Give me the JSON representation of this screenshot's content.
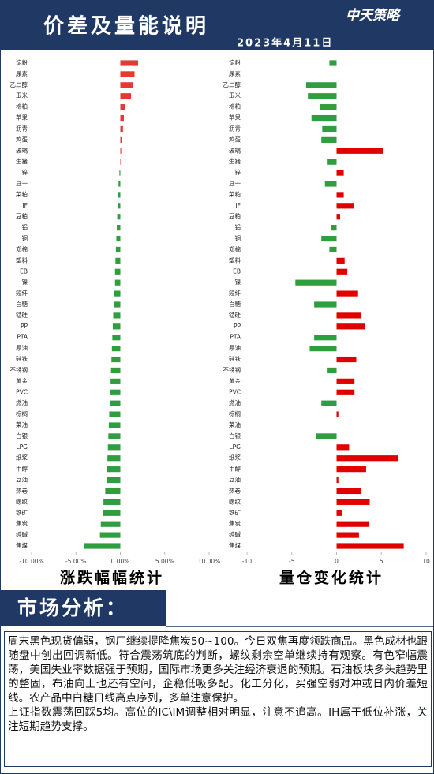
{
  "header": {
    "title": "价差及量能说明",
    "date": "2023年4月11日",
    "logo": "中天策略"
  },
  "chart_data": [
    {
      "type": "bar",
      "orientation": "horizontal",
      "title": "涨跌幅幅统计",
      "categories": [
        "淀粉",
        "尿素",
        "乙二醇",
        "玉米",
        "棉粕",
        "苹果",
        "沥青",
        "鸡蛋",
        "玻璃",
        "生猪",
        "锌",
        "豆一",
        "菜粕",
        "IF",
        "豆粕",
        "铝",
        "铜",
        "郑棉",
        "塑料",
        "EB",
        "镍",
        "短纤",
        "白糖",
        "锰硅",
        "PP",
        "PTA",
        "原油",
        "硅铁",
        "不锈钢",
        "黄金",
        "PVC",
        "燃油",
        "棕榈",
        "菜油",
        "白银",
        "LPG",
        "纸浆",
        "甲醇",
        "豆油",
        "热卷",
        "螺纹",
        "铁矿",
        "焦炭",
        "纯碱",
        "焦煤"
      ],
      "values": [
        2.0,
        1.6,
        1.4,
        1.2,
        0.5,
        0.4,
        0.3,
        0.2,
        0.1,
        0.05,
        -0.1,
        -0.2,
        -0.25,
        -0.3,
        -0.35,
        -0.4,
        -0.45,
        -0.5,
        -0.55,
        -0.6,
        -0.6,
        -0.7,
        -0.75,
        -0.8,
        -0.85,
        -0.9,
        -0.95,
        -1.0,
        -1.05,
        -1.1,
        -1.15,
        -1.2,
        -1.25,
        -1.3,
        -1.35,
        -1.4,
        -1.45,
        -1.5,
        -1.55,
        -1.7,
        -1.9,
        -2.0,
        -2.2,
        -2.3,
        -4.1
      ],
      "positive_color": "#e53935",
      "negative_color": "#2e9e3e",
      "xlim": [
        -10,
        10
      ],
      "xticks": [
        {
          "value": -10,
          "label": "-10.00%"
        },
        {
          "value": -5,
          "label": "-5.00%"
        },
        {
          "value": 0,
          "label": "0.00%"
        },
        {
          "value": 5,
          "label": "5.00%"
        },
        {
          "value": 10,
          "label": "10.00%"
        }
      ]
    },
    {
      "type": "bar",
      "orientation": "horizontal",
      "title": "量仓变化统计",
      "categories": [
        "淀粉",
        "尿素",
        "乙二醇",
        "玉米",
        "棉粕",
        "苹果",
        "沥青",
        "鸡蛋",
        "玻璃",
        "生猪",
        "锌",
        "豆一",
        "菜粕",
        "IF",
        "豆粕",
        "铝",
        "铜",
        "郑棉",
        "塑料",
        "EB",
        "镍",
        "短纤",
        "白糖",
        "锰硅",
        "PP",
        "PTA",
        "原油",
        "硅铁",
        "不锈钢",
        "黄金",
        "PVC",
        "燃油",
        "棕榈",
        "菜油",
        "白银",
        "LPG",
        "纸浆",
        "甲醇",
        "豆油",
        "热卷",
        "螺纹",
        "铁矿",
        "焦炭",
        "纯碱",
        "焦煤"
      ],
      "values": [
        -0.8,
        0,
        -3.4,
        -3.2,
        -1.9,
        -2.8,
        -1.6,
        -1.7,
        5.2,
        -1.0,
        0.8,
        -1.3,
        0.8,
        1.9,
        0.4,
        -0.6,
        -1.7,
        -0.8,
        0.9,
        1.2,
        -4.6,
        2.4,
        -2.5,
        2.7,
        3.2,
        -2.5,
        -3.0,
        2.2,
        -1.0,
        2.0,
        2.0,
        -1.7,
        0.2,
        0,
        -2.3,
        1.4,
        6.9,
        3.3,
        0.2,
        2.7,
        3.7,
        0.6,
        3.6,
        2.5,
        7.5
      ],
      "positive_color": "#e00000",
      "negative_color": "#2e9e3e",
      "xlim": [
        -10,
        10
      ],
      "xticks": [
        -10,
        -5,
        0,
        5,
        10
      ]
    }
  ],
  "section_title": "市场分析：",
  "paragraphs": [
    "周末黑色现货偏弱，钢厂继续提降焦炭50~100。今日双焦再度领跌商品。黑色成材也跟随盘中创出回调新低。符合震荡筑底的判断，螺纹剩余空单继续持有观察。有色窄幅震荡，美国失业率数据强于预期，国际市场更多关注经济衰退的预期。石油板块多头趋势里的整固，布油向上也还有空间，企稳低吸多配。化工分化，买强空弱对冲或日内价差短线。农产品中白糖日线高点序列，多单注意保护。",
    "上证指数震荡回踩5均。高位的IC\\IM调整相对明显，注意不追高。IH属于低位补涨，关注短期趋势支撑。"
  ]
}
